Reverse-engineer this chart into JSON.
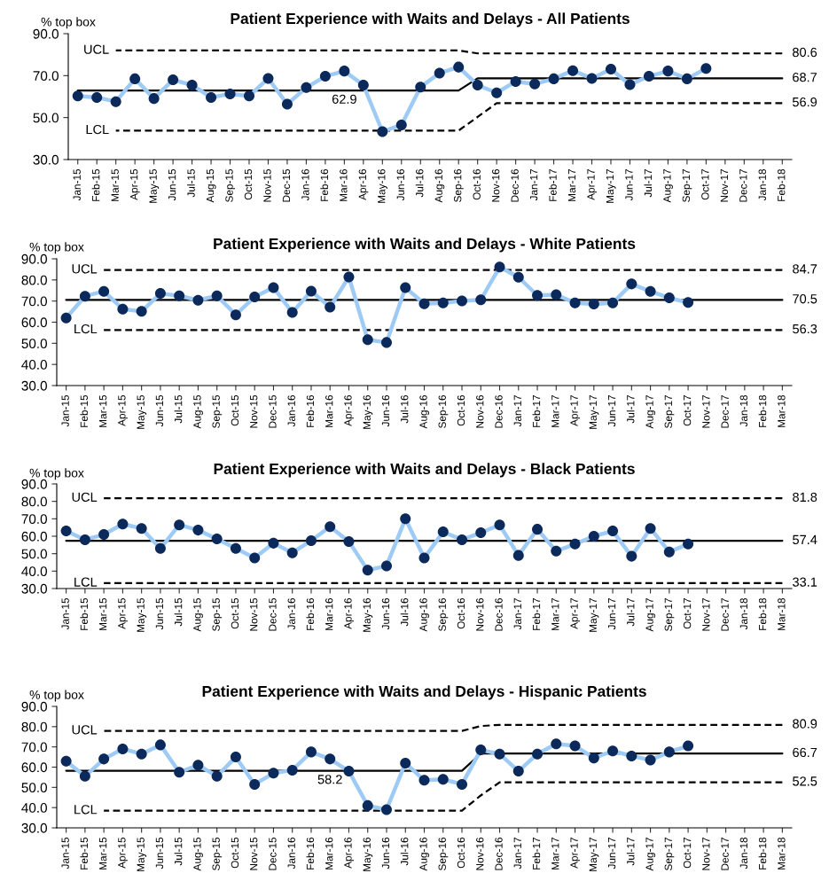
{
  "chart_data": [
    {
      "type": "line",
      "title": "Patient Experience with Waits and Delays - All Patients",
      "ylabel": "% top box",
      "categories": [
        "Jan-15",
        "Feb-15",
        "Mar-15",
        "Apr-15",
        "May-15",
        "Jun-15",
        "Jul-15",
        "Aug-15",
        "Sep-15",
        "Oct-15",
        "Nov-15",
        "Dec-15",
        "Jan-16",
        "Feb-16",
        "Mar-16",
        "Apr-16",
        "May-16",
        "Jun-16",
        "Jul-16",
        "Aug-16",
        "Sep-16",
        "Oct-16",
        "Nov-16",
        "Dec-16",
        "Jan-17",
        "Feb-17",
        "Mar-17",
        "Apr-17",
        "May-17",
        "Jun-17",
        "Jul-17",
        "Aug-17",
        "Sep-17",
        "Oct-17",
        "Nov-17",
        "Dec-17",
        "Jan-18",
        "Feb-18"
      ],
      "series": [
        {
          "type": "line",
          "color": "#9ecbf5",
          "marker": "none",
          "line_style": "solid",
          "values": [
            60.3,
            59.6,
            57.6,
            68.5,
            59.1,
            68.0,
            65.5,
            59.6,
            61.3,
            60.3,
            68.7,
            56.4,
            64.3,
            69.7,
            72.2,
            65.5,
            43.3,
            46.5,
            64.5,
            71.2,
            74.1,
            65.5,
            61.8,
            67.2,
            66.0,
            68.5,
            72.4,
            68.7,
            73.1,
            65.7,
            69.7,
            72.2,
            68.5,
            73.4,
            null,
            null,
            null,
            null
          ]
        },
        {
          "type": "scatter",
          "color": "#0b2a5b",
          "marker": "circle",
          "values": [
            60.3,
            59.6,
            57.6,
            68.5,
            59.1,
            68.0,
            65.5,
            59.6,
            61.3,
            60.3,
            68.7,
            56.4,
            64.3,
            69.7,
            72.2,
            65.5,
            43.3,
            46.5,
            64.5,
            71.2,
            74.1,
            65.5,
            61.8,
            67.2,
            66.0,
            68.5,
            72.4,
            68.7,
            73.1,
            65.7,
            69.7,
            72.2,
            68.5,
            73.4,
            null,
            null,
            null,
            null
          ]
        },
        {
          "type": "line",
          "color": "#000000",
          "marker": "none",
          "line_style": "solid",
          "values": [
            62.9,
            62.9,
            62.9,
            62.9,
            62.9,
            62.9,
            62.9,
            62.9,
            62.9,
            62.9,
            62.9,
            62.9,
            62.9,
            62.9,
            62.9,
            62.9,
            62.9,
            62.9,
            62.9,
            62.9,
            62.9,
            68.7,
            68.7,
            68.7,
            68.7,
            68.7,
            68.7,
            68.7,
            68.7,
            68.7,
            68.7,
            68.7,
            68.7,
            68.7,
            68.7,
            68.7,
            68.7,
            68.7
          ]
        },
        {
          "type": "line",
          "name": "UCL",
          "color": "#000000",
          "marker": "none",
          "line_style": "dashed",
          "values": [
            null,
            null,
            82.0,
            82.0,
            82.0,
            82.0,
            82.0,
            82.0,
            82.0,
            82.0,
            82.0,
            82.0,
            82.0,
            82.0,
            82.0,
            82.0,
            82.0,
            82.0,
            82.0,
            82.0,
            82.0,
            80.6,
            80.6,
            80.6,
            80.6,
            80.6,
            80.6,
            80.6,
            80.6,
            80.6,
            80.6,
            80.6,
            80.6,
            80.6,
            80.6,
            80.6,
            80.6,
            80.6
          ]
        },
        {
          "type": "line",
          "name": "LCL",
          "color": "#000000",
          "marker": "none",
          "line_style": "dashed",
          "values": [
            null,
            null,
            43.8,
            43.8,
            43.8,
            43.8,
            43.8,
            43.8,
            43.8,
            43.8,
            43.8,
            43.8,
            43.8,
            43.8,
            43.8,
            43.8,
            43.8,
            43.8,
            43.8,
            43.8,
            43.8,
            50.3,
            56.9,
            56.9,
            56.9,
            56.9,
            56.9,
            56.9,
            56.9,
            56.9,
            56.9,
            56.9,
            56.9,
            56.9,
            56.9,
            56.9,
            56.9,
            56.9
          ]
        }
      ],
      "ylim": [
        30,
        90
      ],
      "yticks": [
        {
          "value": 30,
          "label": "30.0"
        },
        {
          "value": 50,
          "label": "50.0"
        },
        {
          "value": 70,
          "label": "70.0"
        },
        {
          "value": 90,
          "label": "90.0"
        }
      ],
      "annotations": [
        {
          "text": "62.9",
          "x": "Mar-16",
          "y": 62.9
        },
        {
          "text": "80.6",
          "x": "Feb-18",
          "y": 80.6
        },
        {
          "text": "68.7",
          "x": "Feb-18",
          "y": 68.7
        },
        {
          "text": "56.9",
          "x": "Feb-18",
          "y": 56.9
        }
      ]
    },
    {
      "type": "line",
      "title": "Patient Experience with Waits and Delays - White Patients",
      "ylabel": "% top box",
      "categories": [
        "Jan-15",
        "Feb-15",
        "Mar-15",
        "Apr-15",
        "May-15",
        "Jun-15",
        "Jul-15",
        "Aug-15",
        "Sep-15",
        "Oct-15",
        "Nov-15",
        "Dec-15",
        "Jan-16",
        "Feb-16",
        "Mar-16",
        "Apr-16",
        "May-16",
        "Jun-16",
        "Jul-16",
        "Aug-16",
        "Sep-16",
        "Oct-16",
        "Nov-16",
        "Dec-16",
        "Jan-17",
        "Feb-17",
        "Mar-17",
        "Apr-17",
        "May-17",
        "Jun-17",
        "Jul-17",
        "Aug-17",
        "Sep-17",
        "Oct-17",
        "Nov-17",
        "Dec-17",
        "Jan-18",
        "Feb-18",
        "Mar-18"
      ],
      "series": [
        {
          "type": "line",
          "color": "#9ecbf5",
          "marker": "none",
          "line_style": "solid",
          "values": [
            62.0,
            72.3,
            74.6,
            66.2,
            65.1,
            73.6,
            72.5,
            70.4,
            72.5,
            63.5,
            72.0,
            76.4,
            64.6,
            74.7,
            67.1,
            81.4,
            51.7,
            50.4,
            76.4,
            68.7,
            69.1,
            70.1,
            70.6,
            86.1,
            81.3,
            72.7,
            73.0,
            69.1,
            68.6,
            69.1,
            78.1,
            74.6,
            71.5,
            69.3,
            null,
            null,
            null,
            null,
            null
          ]
        },
        {
          "type": "scatter",
          "color": "#0b2a5b",
          "marker": "circle",
          "values": [
            62.0,
            72.3,
            74.6,
            66.2,
            65.1,
            73.6,
            72.5,
            70.4,
            72.5,
            63.5,
            72.0,
            76.4,
            64.6,
            74.7,
            67.1,
            81.4,
            51.7,
            50.4,
            76.4,
            68.7,
            69.1,
            70.1,
            70.6,
            86.1,
            81.3,
            72.7,
            73.0,
            69.1,
            68.6,
            69.1,
            78.1,
            74.6,
            71.5,
            69.3,
            null,
            null,
            null,
            null,
            null
          ]
        },
        {
          "type": "line",
          "color": "#000000",
          "marker": "none",
          "line_style": "solid",
          "values": [
            70.5,
            70.5,
            70.5,
            70.5,
            70.5,
            70.5,
            70.5,
            70.5,
            70.5,
            70.5,
            70.5,
            70.5,
            70.5,
            70.5,
            70.5,
            70.5,
            70.5,
            70.5,
            70.5,
            70.5,
            70.5,
            70.5,
            70.5,
            70.5,
            70.5,
            70.5,
            70.5,
            70.5,
            70.5,
            70.5,
            70.5,
            70.5,
            70.5,
            70.5,
            70.5,
            70.5,
            70.5,
            70.5,
            70.5
          ]
        },
        {
          "type": "line",
          "name": "UCL",
          "color": "#000000",
          "marker": "none",
          "line_style": "dashed",
          "values": [
            null,
            null,
            84.7,
            84.7,
            84.7,
            84.7,
            84.7,
            84.7,
            84.7,
            84.7,
            84.7,
            84.7,
            84.7,
            84.7,
            84.7,
            84.7,
            84.7,
            84.7,
            84.7,
            84.7,
            84.7,
            84.7,
            84.7,
            84.7,
            84.7,
            84.7,
            84.7,
            84.7,
            84.7,
            84.7,
            84.7,
            84.7,
            84.7,
            84.7,
            84.7,
            84.7,
            84.7,
            84.7,
            84.7
          ]
        },
        {
          "type": "line",
          "name": "LCL",
          "color": "#000000",
          "marker": "none",
          "line_style": "dashed",
          "values": [
            null,
            null,
            56.3,
            56.3,
            56.3,
            56.3,
            56.3,
            56.3,
            56.3,
            56.3,
            56.3,
            56.3,
            56.3,
            56.3,
            56.3,
            56.3,
            56.3,
            56.3,
            56.3,
            56.3,
            56.3,
            56.3,
            56.3,
            56.3,
            56.3,
            56.3,
            56.3,
            56.3,
            56.3,
            56.3,
            56.3,
            56.3,
            56.3,
            56.3,
            56.3,
            56.3,
            56.3,
            56.3,
            56.3
          ]
        }
      ],
      "ylim": [
        30,
        90
      ],
      "yticks": [
        {
          "value": 30,
          "label": "30.0"
        },
        {
          "value": 40,
          "label": "40.0"
        },
        {
          "value": 50,
          "label": "50.0"
        },
        {
          "value": 60,
          "label": "60.0"
        },
        {
          "value": 70,
          "label": "70.0"
        },
        {
          "value": 80,
          "label": "80.0"
        },
        {
          "value": 90,
          "label": "90.0"
        }
      ],
      "annotations": [
        {
          "text": "84.7",
          "x": "Mar-18",
          "y": 84.7
        },
        {
          "text": "70.5",
          "x": "Mar-18",
          "y": 70.5
        },
        {
          "text": "56.3",
          "x": "Mar-18",
          "y": 56.3
        }
      ]
    },
    {
      "type": "line",
      "title": "Patient Experience with Waits and Delays - Black Patients",
      "ylabel": "% top box",
      "categories": [
        "Jan-15",
        "Feb-15",
        "Mar-15",
        "Apr-15",
        "May-15",
        "Jun-15",
        "Jul-15",
        "Aug-15",
        "Sep-15",
        "Oct-15",
        "Nov-15",
        "Dec-15",
        "Jan-16",
        "Feb-16",
        "Mar-16",
        "Apr-16",
        "May-16",
        "Jun-16",
        "Jul-16",
        "Aug-16",
        "Sep-16",
        "Oct-16",
        "Nov-16",
        "Dec-16",
        "Jan-17",
        "Feb-17",
        "Mar-17",
        "Apr-17",
        "May-17",
        "Jun-17",
        "Jul-17",
        "Aug-17",
        "Sep-17",
        "Oct-17",
        "Nov-17",
        "Dec-17",
        "Jan-18",
        "Feb-18",
        "Mar-18"
      ],
      "series": [
        {
          "type": "line",
          "color": "#9ecbf5",
          "marker": "none",
          "line_style": "solid",
          "values": [
            63,
            58,
            61,
            67,
            64.5,
            53,
            66.5,
            63.5,
            58.5,
            53,
            47.5,
            56,
            50.5,
            57.5,
            65.5,
            57,
            40.5,
            43,
            70,
            47.5,
            62.5,
            58,
            62,
            66.5,
            49,
            64,
            51.5,
            55.5,
            60,
            63,
            48.5,
            64.5,
            51,
            55.5,
            null,
            null,
            null,
            null,
            null
          ]
        },
        {
          "type": "scatter",
          "color": "#0b2a5b",
          "marker": "circle",
          "values": [
            63,
            58,
            61,
            67,
            64.5,
            53,
            66.5,
            63.5,
            58.5,
            53,
            47.5,
            56,
            50.5,
            57.5,
            65.5,
            57,
            40.5,
            43,
            70,
            47.5,
            62.5,
            58,
            62,
            66.5,
            49,
            64,
            51.5,
            55.5,
            60,
            63,
            48.5,
            64.5,
            51,
            55.5,
            null,
            null,
            null,
            null,
            null
          ]
        },
        {
          "type": "line",
          "color": "#000000",
          "marker": "none",
          "line_style": "solid",
          "values": [
            57.4,
            57.4,
            57.4,
            57.4,
            57.4,
            57.4,
            57.4,
            57.4,
            57.4,
            57.4,
            57.4,
            57.4,
            57.4,
            57.4,
            57.4,
            57.4,
            57.4,
            57.4,
            57.4,
            57.4,
            57.4,
            57.4,
            57.4,
            57.4,
            57.4,
            57.4,
            57.4,
            57.4,
            57.4,
            57.4,
            57.4,
            57.4,
            57.4,
            57.4,
            57.4,
            57.4,
            57.4,
            57.4,
            57.4
          ]
        },
        {
          "type": "line",
          "name": "UCL",
          "color": "#000000",
          "marker": "none",
          "line_style": "dashed",
          "values": [
            null,
            null,
            81.8,
            81.8,
            81.8,
            81.8,
            81.8,
            81.8,
            81.8,
            81.8,
            81.8,
            81.8,
            81.8,
            81.8,
            81.8,
            81.8,
            81.8,
            81.8,
            81.8,
            81.8,
            81.8,
            81.8,
            81.8,
            81.8,
            81.8,
            81.8,
            81.8,
            81.8,
            81.8,
            81.8,
            81.8,
            81.8,
            81.8,
            81.8,
            81.8,
            81.8,
            81.8,
            81.8,
            81.8
          ]
        },
        {
          "type": "line",
          "name": "LCL",
          "color": "#000000",
          "marker": "none",
          "line_style": "dashed",
          "values": [
            null,
            null,
            33.1,
            33.1,
            33.1,
            33.1,
            33.1,
            33.1,
            33.1,
            33.1,
            33.1,
            33.1,
            33.1,
            33.1,
            33.1,
            33.1,
            33.1,
            33.1,
            33.1,
            33.1,
            33.1,
            33.1,
            33.1,
            33.1,
            33.1,
            33.1,
            33.1,
            33.1,
            33.1,
            33.1,
            33.1,
            33.1,
            33.1,
            33.1,
            33.1,
            33.1,
            33.1,
            33.1,
            33.1
          ]
        }
      ],
      "ylim": [
        30,
        90
      ],
      "yticks": [
        {
          "value": 30,
          "label": "30.0"
        },
        {
          "value": 40,
          "label": "40.0"
        },
        {
          "value": 50,
          "label": "50.0"
        },
        {
          "value": 60,
          "label": "60.0"
        },
        {
          "value": 70,
          "label": "70.0"
        },
        {
          "value": 80,
          "label": "80.0"
        },
        {
          "value": 90,
          "label": "90.0"
        }
      ],
      "annotations": [
        {
          "text": "81.8",
          "x": "Mar-18",
          "y": 81.8
        },
        {
          "text": "57.4",
          "x": "Mar-18",
          "y": 57.4
        },
        {
          "text": "33.1",
          "x": "Mar-18",
          "y": 33.1
        }
      ]
    },
    {
      "type": "line",
      "title": "Patient Experience with Waits and Delays - Hispanic Patients",
      "ylabel": "% top box",
      "categories": [
        "Jan-15",
        "Feb-15",
        "Mar-15",
        "Apr-15",
        "May-15",
        "Jun-15",
        "Jul-15",
        "Aug-15",
        "Sep-15",
        "Oct-15",
        "Nov-15",
        "Dec-15",
        "Jan-16",
        "Feb-16",
        "Mar-16",
        "Apr-16",
        "May-16",
        "Jun-16",
        "Jul-16",
        "Aug-16",
        "Sep-16",
        "Oct-16",
        "Nov-16",
        "Dec-16",
        "Jan-17",
        "Feb-17",
        "Mar-17",
        "Apr-17",
        "May-17",
        "Jun-17",
        "Jul-17",
        "Aug-17",
        "Sep-17",
        "Oct-17",
        "Nov-17",
        "Dec-17",
        "Jan-18",
        "Feb-18",
        "Mar-18"
      ],
      "series": [
        {
          "type": "line",
          "color": "#9ecbf5",
          "marker": "none",
          "line_style": "solid",
          "values": [
            63,
            55.5,
            64,
            69,
            66.5,
            71,
            57.5,
            61,
            55.5,
            65,
            51.5,
            57,
            58.5,
            67.5,
            64,
            58,
            41,
            39,
            62,
            53.5,
            54,
            51.5,
            68.5,
            66.5,
            58,
            66.5,
            71.5,
            70.5,
            64.5,
            68,
            65.5,
            63.5,
            67.5,
            70.5,
            null,
            null,
            null,
            null,
            null
          ]
        },
        {
          "type": "scatter",
          "color": "#0b2a5b",
          "marker": "circle",
          "values": [
            63,
            55.5,
            64,
            69,
            66.5,
            71,
            57.5,
            61,
            55.5,
            65,
            51.5,
            57,
            58.5,
            67.5,
            64,
            58,
            41,
            39,
            62,
            53.5,
            54,
            51.5,
            68.5,
            66.5,
            58,
            66.5,
            71.5,
            70.5,
            64.5,
            68,
            65.5,
            63.5,
            67.5,
            70.5,
            null,
            null,
            null,
            null,
            null
          ]
        },
        {
          "type": "line",
          "color": "#000000",
          "marker": "none",
          "line_style": "solid",
          "values": [
            58.2,
            58.2,
            58.2,
            58.2,
            58.2,
            58.2,
            58.2,
            58.2,
            58.2,
            58.2,
            58.2,
            58.2,
            58.2,
            58.2,
            58.2,
            58.2,
            58.2,
            58.2,
            58.2,
            58.2,
            58.2,
            58.2,
            66.7,
            66.7,
            66.7,
            66.7,
            66.7,
            66.7,
            66.7,
            66.7,
            66.7,
            66.7,
            66.7,
            66.7,
            66.7,
            66.7,
            66.7,
            66.7,
            66.7
          ]
        },
        {
          "type": "line",
          "name": "UCL",
          "color": "#000000",
          "marker": "none",
          "line_style": "dashed",
          "values": [
            null,
            null,
            77.9,
            77.9,
            77.9,
            77.9,
            77.9,
            77.9,
            77.9,
            77.9,
            77.9,
            77.9,
            77.9,
            77.9,
            77.9,
            77.9,
            77.9,
            77.9,
            77.9,
            77.9,
            77.9,
            77.9,
            80.3,
            80.9,
            80.9,
            80.9,
            80.9,
            80.9,
            80.9,
            80.9,
            80.9,
            80.9,
            80.9,
            80.9,
            80.9,
            80.9,
            80.9,
            80.9,
            80.9
          ]
        },
        {
          "type": "line",
          "name": "LCL",
          "color": "#000000",
          "marker": "none",
          "line_style": "dashed",
          "values": [
            null,
            null,
            38.5,
            38.5,
            38.5,
            38.5,
            38.5,
            38.5,
            38.5,
            38.5,
            38.5,
            38.5,
            38.5,
            38.5,
            38.5,
            38.5,
            38.5,
            38.5,
            38.5,
            38.5,
            38.5,
            38.5,
            46.0,
            52.5,
            52.5,
            52.5,
            52.5,
            52.5,
            52.5,
            52.5,
            52.5,
            52.5,
            52.5,
            52.5,
            52.5,
            52.5,
            52.5,
            52.5,
            52.5
          ]
        }
      ],
      "ylim": [
        30,
        90
      ],
      "yticks": [
        {
          "value": 30,
          "label": "30.0"
        },
        {
          "value": 40,
          "label": "40.0"
        },
        {
          "value": 50,
          "label": "50.0"
        },
        {
          "value": 60,
          "label": "60.0"
        },
        {
          "value": 70,
          "label": "70.0"
        },
        {
          "value": 80,
          "label": "80.0"
        },
        {
          "value": 90,
          "label": "90.0"
        }
      ],
      "annotations": [
        {
          "text": "58.2",
          "x": "Mar-16",
          "y": 58.2
        },
        {
          "text": "80.9",
          "x": "Mar-18",
          "y": 80.9
        },
        {
          "text": "66.7",
          "x": "Mar-18",
          "y": 66.7
        },
        {
          "text": "52.5",
          "x": "Mar-18",
          "y": 52.5
        }
      ]
    }
  ]
}
